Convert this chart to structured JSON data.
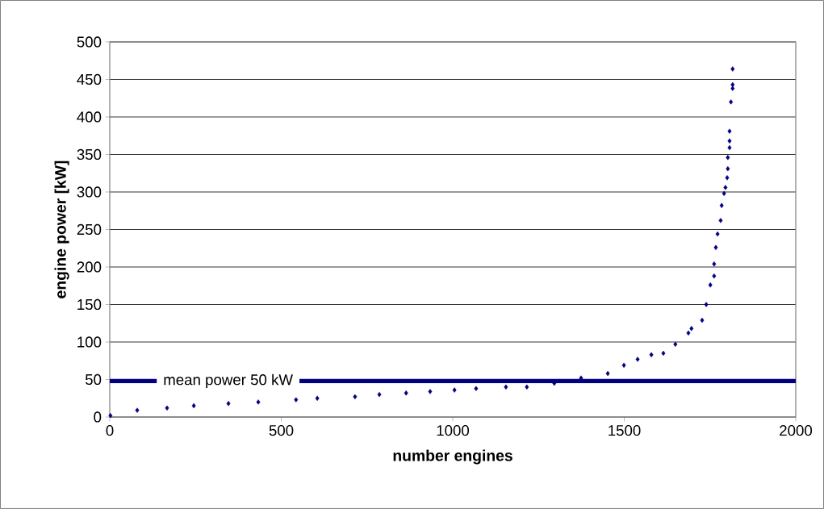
{
  "chart_data": {
    "type": "scatter",
    "xlabel": "number engines",
    "ylabel": "engine power [kW]",
    "color": "#000080",
    "marker": "diamond",
    "grid": "y",
    "xlim": [
      0,
      2000
    ],
    "xticks": [
      0,
      500,
      1000,
      1500,
      2000
    ],
    "ylim": [
      0,
      500
    ],
    "yticks": [
      0,
      50,
      100,
      150,
      200,
      250,
      300,
      350,
      400,
      450,
      500
    ],
    "x": [
      2,
      80,
      167,
      245,
      346,
      433,
      543,
      605,
      715,
      786,
      864,
      934,
      1005,
      1068,
      1155,
      1216,
      1296,
      1374,
      1452,
      1499,
      1539,
      1579,
      1614,
      1649,
      1687,
      1696,
      1727,
      1739,
      1751,
      1762,
      1762,
      1767,
      1772,
      1781,
      1784,
      1791,
      1795,
      1800,
      1802,
      1802,
      1807,
      1807,
      1807,
      1811,
      1816,
      1816,
      1816
    ],
    "values": [
      2,
      9,
      12,
      15,
      18,
      20,
      23,
      25,
      27,
      30,
      32,
      34,
      36,
      38,
      40,
      40,
      45,
      52,
      58,
      69,
      77,
      83,
      85,
      97,
      112,
      118,
      129,
      150,
      176,
      188,
      204,
      226,
      244,
      262,
      282,
      298,
      306,
      319,
      331,
      346,
      359,
      368,
      381,
      420,
      438,
      443,
      464
    ],
    "ref_lines": [
      {
        "axis": "y",
        "value": 48,
        "label": "mean power  50 kW",
        "color": "#000080"
      }
    ]
  }
}
